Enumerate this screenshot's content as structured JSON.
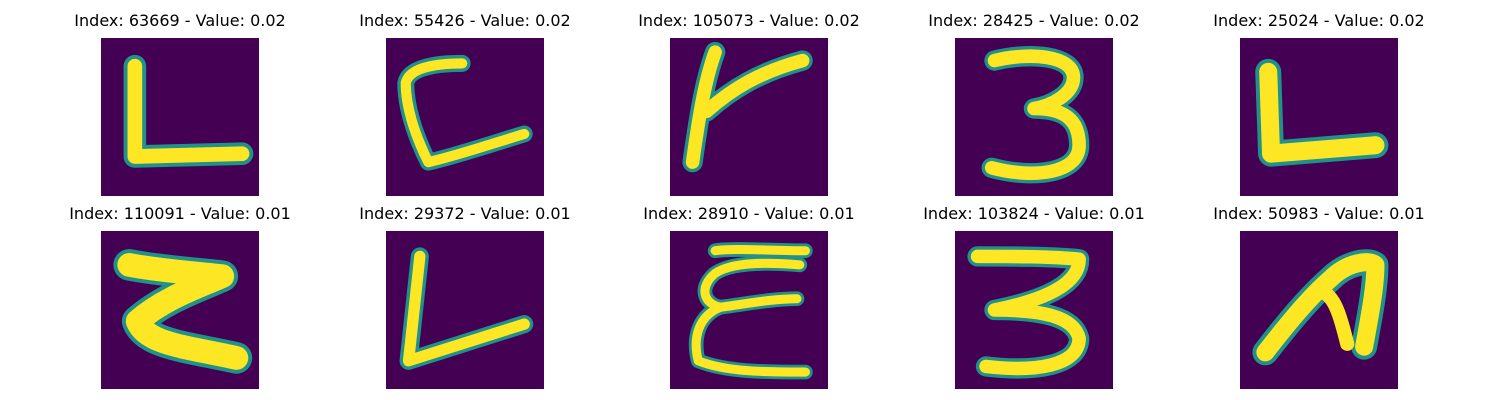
{
  "colors": {
    "background": "#440154",
    "mid": "#21918c",
    "stroke": "#fde725"
  },
  "panels": [
    {
      "title": "Index: 63669 - Value: 0.02",
      "glyph": "L",
      "icon": "handwritten-letter-L-icon"
    },
    {
      "title": "Index: 55426 - Value: 0.02",
      "glyph": "C",
      "icon": "handwritten-letter-C-icon"
    },
    {
      "title": "Index: 105073 - Value: 0.02",
      "glyph": "Y",
      "icon": "handwritten-letter-Y-icon"
    },
    {
      "title": "Index: 28425 - Value: 0.02",
      "glyph": "3",
      "icon": "handwritten-digit-3-icon"
    },
    {
      "title": "Index: 25024 - Value: 0.02",
      "glyph": "L",
      "icon": "handwritten-letter-L-icon"
    },
    {
      "title": "Index: 110091 - Value: 0.01",
      "glyph": "Z",
      "icon": "handwritten-letter-Z-icon"
    },
    {
      "title": "Index: 29372 - Value: 0.01",
      "glyph": "L",
      "icon": "handwritten-letter-L-icon"
    },
    {
      "title": "Index: 28910 - Value: 0.01",
      "glyph": "E",
      "icon": "handwritten-letter-E-icon"
    },
    {
      "title": "Index: 103824 - Value: 0.01",
      "glyph": "3",
      "icon": "handwritten-digit-3-icon"
    },
    {
      "title": "Index: 50983 - Value: 0.01",
      "glyph": "n",
      "icon": "handwritten-letter-n-icon"
    }
  ]
}
